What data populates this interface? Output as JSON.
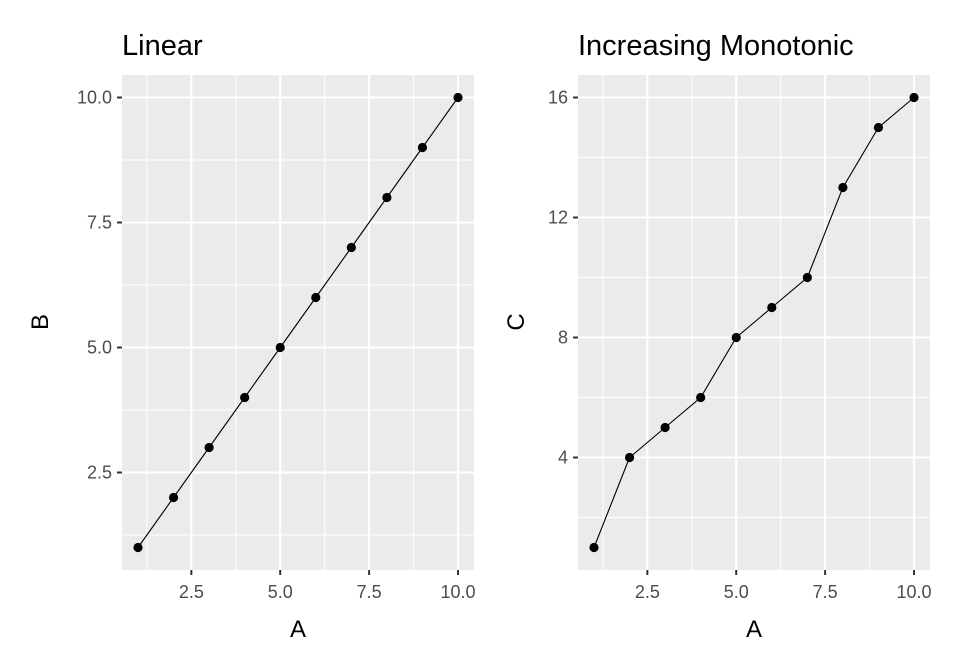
{
  "chart_data": [
    {
      "type": "line",
      "title": "Linear",
      "xlabel": "A",
      "ylabel": "B",
      "x": [
        1,
        2,
        3,
        4,
        5,
        6,
        7,
        8,
        9,
        10
      ],
      "series": [
        {
          "values": [
            1,
            2,
            3,
            4,
            5,
            6,
            7,
            8,
            9,
            10
          ]
        }
      ],
      "xlim": [
        0.55,
        10.45
      ],
      "ylim": [
        0.55,
        10.45
      ],
      "xticks": [
        2.5,
        5.0,
        7.5,
        10.0
      ],
      "xtick_labels": [
        "2.5",
        "5.0",
        "7.5",
        "10.0"
      ],
      "yticks": [
        2.5,
        5.0,
        7.5,
        10.0
      ],
      "ytick_labels": [
        "2.5",
        "5.0",
        "7.5",
        "10.0"
      ],
      "grid": true,
      "markers": true,
      "line_color": "#000000",
      "panel_color": "#ebebeb"
    },
    {
      "type": "line",
      "title": "Increasing Monotonic",
      "xlabel": "A",
      "ylabel": "C",
      "x": [
        1,
        2,
        3,
        4,
        5,
        6,
        7,
        8,
        9,
        10
      ],
      "series": [
        {
          "values": [
            1,
            4,
            5,
            6,
            8,
            9,
            10,
            13,
            15,
            16
          ]
        }
      ],
      "xlim": [
        0.55,
        10.45
      ],
      "ylim": [
        0.25,
        16.75
      ],
      "xticks": [
        2.5,
        5.0,
        7.5,
        10.0
      ],
      "xtick_labels": [
        "2.5",
        "5.0",
        "7.5",
        "10.0"
      ],
      "yticks": [
        4,
        8,
        12,
        16
      ],
      "ytick_labels": [
        "4",
        "8",
        "12",
        "16"
      ],
      "grid": true,
      "markers": true,
      "line_color": "#000000",
      "panel_color": "#ebebeb"
    }
  ]
}
